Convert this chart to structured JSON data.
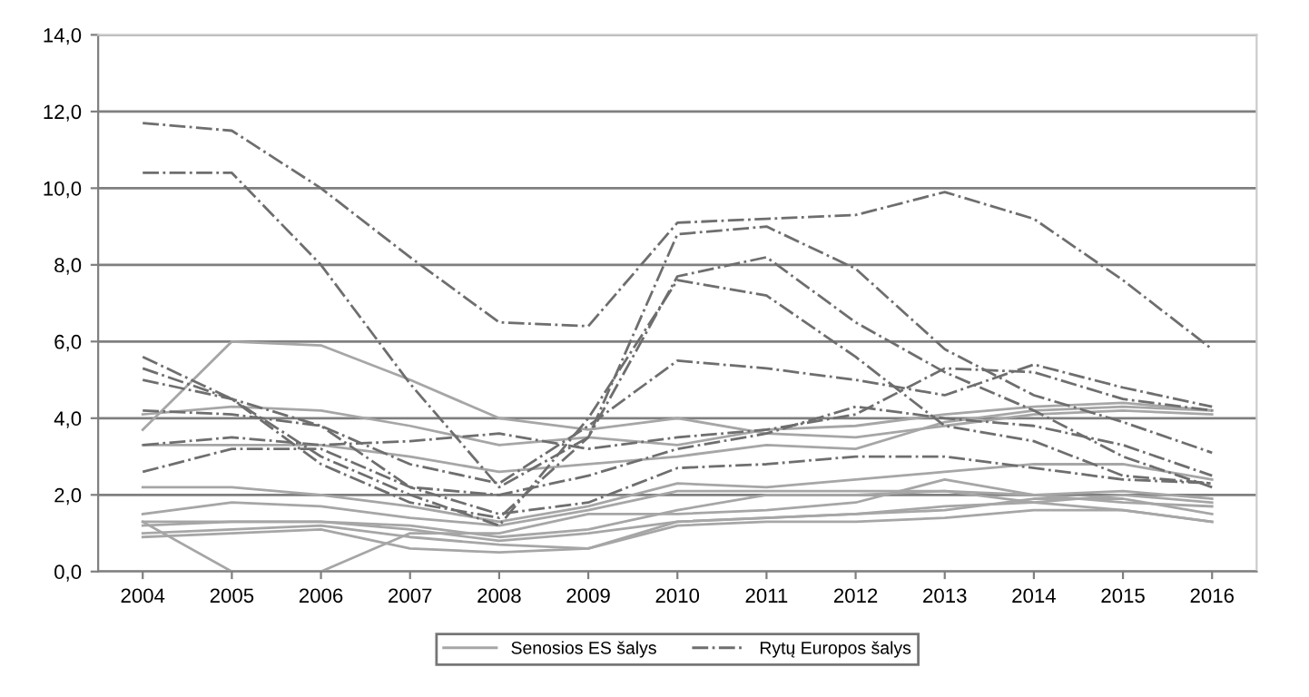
{
  "chart_data": {
    "type": "line",
    "categories": [
      "2004",
      "2005",
      "2006",
      "2007",
      "2008",
      "2009",
      "2010",
      "2011",
      "2012",
      "2013",
      "2014",
      "2015",
      "2016"
    ],
    "ylim": [
      0,
      14
    ],
    "yticks": [
      {
        "value": 0,
        "label": "0,0"
      },
      {
        "value": 2,
        "label": "2,0"
      },
      {
        "value": 4,
        "label": "4,0"
      },
      {
        "value": 6,
        "label": "6,0"
      },
      {
        "value": 8,
        "label": "8,0"
      },
      {
        "value": 10,
        "label": "10,0"
      },
      {
        "value": 12,
        "label": "12,0"
      },
      {
        "value": 14,
        "label": "14,0"
      }
    ],
    "grid": "y",
    "legend": "bottom",
    "marker": "none",
    "series": [
      {
        "name": "Senosios ES šalys",
        "color": "#a6a6a6",
        "line_style": "solid",
        "values": [
          3.7,
          6.0,
          5.9,
          5.0,
          4.0,
          3.7,
          4.0,
          3.6,
          3.5,
          3.8,
          4.1,
          4.2,
          4.1
        ]
      },
      {
        "color": "#a6a6a6",
        "line_style": "solid",
        "values": [
          4.1,
          4.3,
          4.2,
          3.8,
          3.3,
          3.5,
          3.3,
          3.7,
          3.8,
          4.1,
          4.3,
          4.4,
          4.2
        ]
      },
      {
        "color": "#a6a6a6",
        "line_style": "solid",
        "values": [
          3.3,
          3.3,
          3.3,
          3.0,
          2.6,
          2.8,
          3.0,
          3.3,
          3.2,
          3.9,
          4.2,
          4.3,
          4.2
        ]
      },
      {
        "color": "#a6a6a6",
        "line_style": "solid",
        "values": [
          2.2,
          2.2,
          2.0,
          1.7,
          1.3,
          1.7,
          2.3,
          2.2,
          2.4,
          2.6,
          2.8,
          2.8,
          2.4
        ]
      },
      {
        "color": "#a6a6a6",
        "line_style": "solid",
        "values": [
          1.5,
          1.8,
          1.7,
          1.4,
          1.2,
          1.6,
          2.1,
          2.1,
          2.1,
          2.1,
          2.0,
          2.1,
          1.9
        ]
      },
      {
        "color": "#a6a6a6",
        "line_style": "solid",
        "values": [
          1.3,
          1.3,
          1.3,
          1.2,
          0.9,
          1.1,
          1.6,
          2.0,
          2.0,
          2.1,
          1.8,
          1.6,
          1.3
        ]
      },
      {
        "color": "#a6a6a6",
        "line_style": "solid",
        "values": [
          1.2,
          1.3,
          1.3,
          1.1,
          0.8,
          1.0,
          1.3,
          1.4,
          1.5,
          1.7,
          1.8,
          2.0,
          1.8
        ]
      },
      {
        "color": "#a6a6a6",
        "line_style": "solid",
        "values": [
          1.0,
          1.1,
          1.2,
          0.9,
          0.7,
          0.6,
          1.3,
          1.4,
          1.5,
          1.6,
          1.9,
          1.9,
          1.5
        ]
      },
      {
        "color": "#a6a6a6",
        "line_style": "solid",
        "values": [
          1.3,
          0.0,
          0.0,
          1.0,
          1.0,
          1.5,
          1.5,
          1.6,
          1.8,
          2.4,
          2.0,
          1.8,
          1.7
        ]
      },
      {
        "color": "#a6a6a6",
        "line_style": "solid",
        "values": [
          0.9,
          1.0,
          1.1,
          0.6,
          0.5,
          0.6,
          1.2,
          1.3,
          1.3,
          1.4,
          1.6,
          1.6,
          1.3
        ]
      },
      {
        "name": "Rytų Europos šalys",
        "color": "#6e6e6e",
        "line_style": "dashdot",
        "values": [
          11.7,
          11.5,
          10.0,
          8.2,
          6.5,
          6.4,
          9.1,
          9.2,
          9.3,
          9.9,
          9.2,
          7.6,
          5.8
        ]
      },
      {
        "color": "#6e6e6e",
        "line_style": "dashdot",
        "values": [
          10.4,
          10.4,
          8.0,
          4.9,
          2.2,
          3.5,
          8.8,
          9.0,
          7.9,
          5.8,
          4.6,
          3.9,
          3.1
        ]
      },
      {
        "color": "#6e6e6e",
        "line_style": "dashdot",
        "values": [
          5.6,
          4.5,
          2.8,
          1.8,
          1.4,
          3.5,
          7.7,
          8.2,
          6.5,
          5.2,
          4.2,
          3.0,
          2.2
        ]
      },
      {
        "color": "#6e6e6e",
        "line_style": "dashdot",
        "values": [
          5.3,
          4.5,
          3.0,
          2.0,
          1.2,
          4.0,
          7.6,
          7.2,
          5.6,
          3.8,
          3.4,
          2.5,
          2.3
        ]
      },
      {
        "color": "#6e6e6e",
        "line_style": "dashdot",
        "values": [
          5.0,
          4.5,
          3.8,
          2.8,
          2.3,
          3.8,
          5.5,
          5.3,
          5.0,
          4.6,
          5.4,
          4.8,
          4.3
        ]
      },
      {
        "color": "#6e6e6e",
        "line_style": "dashdot",
        "values": [
          3.3,
          3.5,
          3.3,
          3.4,
          3.6,
          3.2,
          3.5,
          3.7,
          4.1,
          5.3,
          5.2,
          4.5,
          4.2
        ]
      },
      {
        "color": "#6e6e6e",
        "line_style": "dashdot",
        "values": [
          2.6,
          3.2,
          3.2,
          2.2,
          1.5,
          1.8,
          2.7,
          2.8,
          3.0,
          3.0,
          2.7,
          2.4,
          2.3
        ]
      },
      {
        "color": "#6e6e6e",
        "line_style": "dashdot",
        "values": [
          4.2,
          4.1,
          3.8,
          2.2,
          2.0,
          2.5,
          3.2,
          3.6,
          4.3,
          4.0,
          3.8,
          3.3,
          2.5
        ]
      }
    ]
  }
}
